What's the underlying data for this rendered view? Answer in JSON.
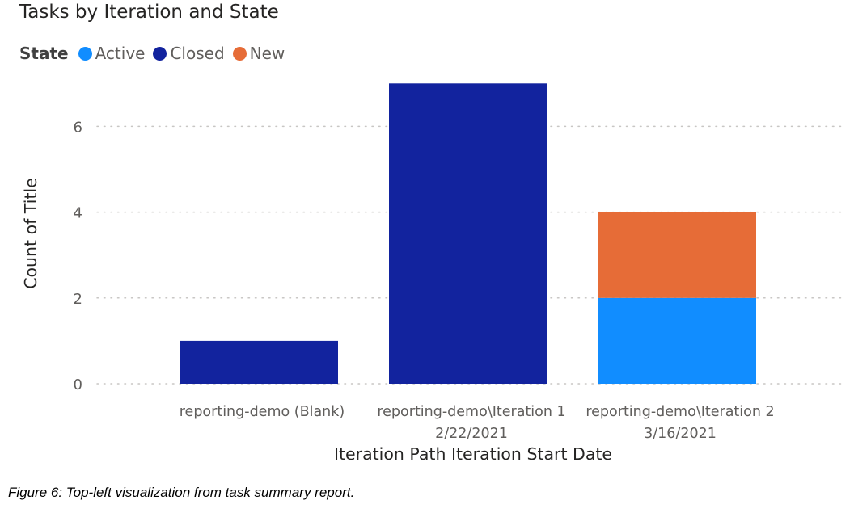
{
  "chart_data": {
    "type": "bar",
    "stacked": true,
    "title": "Tasks by Iteration and State",
    "legend_title": "State",
    "legend_position": "top-left",
    "xlabel": "Iteration Path Iteration Start Date",
    "ylabel": "Count of Title",
    "ylim": [
      0,
      7
    ],
    "yticks": [
      0,
      2,
      4,
      6
    ],
    "grid": true,
    "categories": [
      [
        "reporting-demo (Blank)"
      ],
      [
        "reporting-demo\\Iteration 1",
        "2/22/2021"
      ],
      [
        "reporting-demo\\Iteration 2",
        "3/16/2021"
      ]
    ],
    "series": [
      {
        "name": "Active",
        "color": "#118dff",
        "values": [
          0,
          0,
          2
        ]
      },
      {
        "name": "Closed",
        "color": "#12239e",
        "values": [
          1,
          7,
          0
        ]
      },
      {
        "name": "New",
        "color": "#e66c37",
        "values": [
          0,
          0,
          2
        ]
      }
    ]
  },
  "caption": "Figure 6: Top-left visualization from task summary report."
}
